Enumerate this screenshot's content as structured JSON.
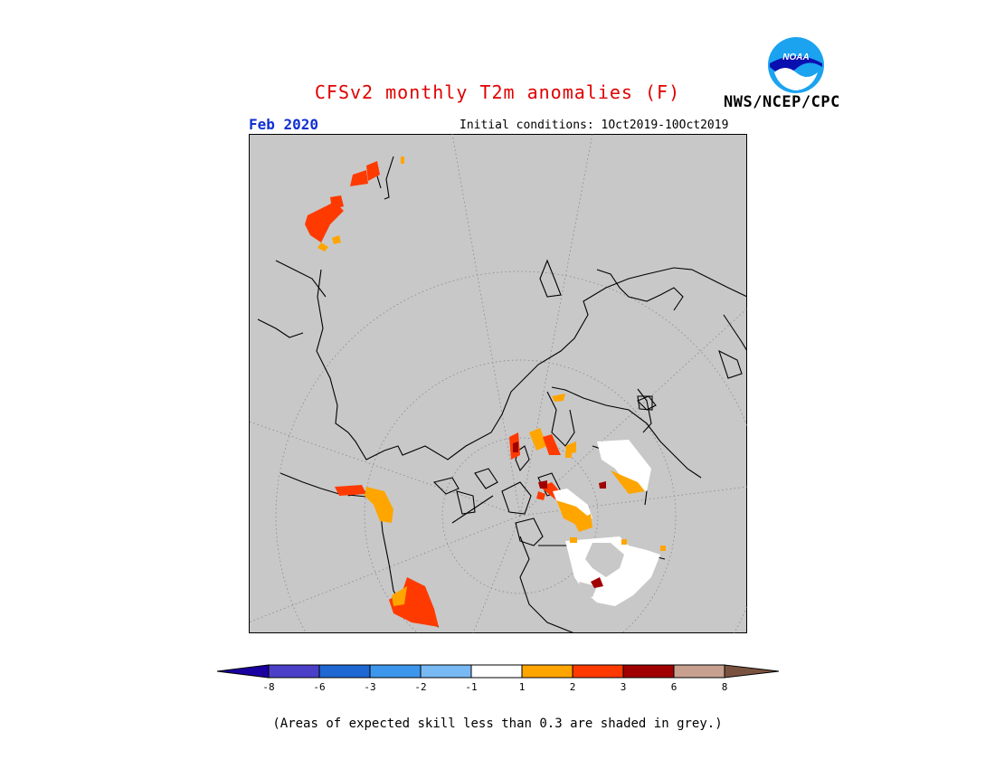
{
  "header": {
    "title": "CFSv2 monthly T2m anomalies (F)",
    "month": "Feb 2020",
    "initial_conditions": "Initial conditions:  1Oct2019-10Oct2019",
    "agency": "NWS/NCEP/CPC",
    "logo_text": "NOAA"
  },
  "colorbar": {
    "labels": [
      "-8",
      "-6",
      "-3",
      "-2",
      "-1",
      "1",
      "2",
      "3",
      "6",
      "8"
    ],
    "colors": [
      "#1a00a0",
      "#4b3fc8",
      "#1f67d2",
      "#3c96ec",
      "#78b9f4",
      "#ffffff",
      "#ffa500",
      "#ff3a00",
      "#a00000",
      "#c8a090",
      "#7a5340"
    ]
  },
  "footnote": "(Areas of expected skill less than 0.3 are shaded in grey.)",
  "map": {
    "projection": "polar-stereographic-north",
    "background": "#c8c8c8",
    "anomaly_colors": {
      "white": "#ffffff",
      "orange": "#ffa500",
      "red_orange": "#ff3a00",
      "dark_red": "#a00000"
    }
  }
}
